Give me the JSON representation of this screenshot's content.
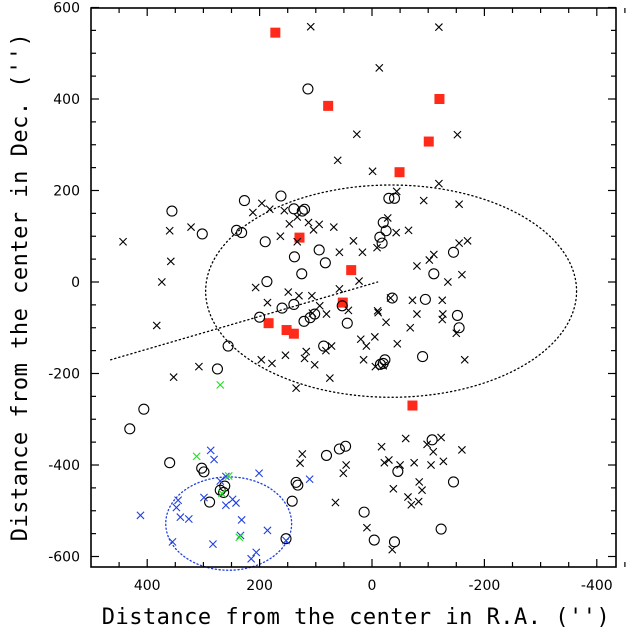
{
  "chart_data": {
    "type": "scatter",
    "xlabel": "Distance from the center in R.A. ('')",
    "ylabel": "Distance from the center in Dec. ('')",
    "xlim": [
      500,
      -500
    ],
    "ylim": [
      -630,
      600
    ],
    "x_ticks": [
      400,
      200,
      0,
      -200,
      -400
    ],
    "x_tick_labels": [
      "400",
      "200",
      "0",
      "-200",
      "-400"
    ],
    "y_ticks": [
      600,
      400,
      200,
      0,
      -200,
      -400,
      -600
    ],
    "y_tick_labels": [
      "600",
      "400",
      "200",
      "0",
      "-200",
      "-400",
      "-600"
    ],
    "grid": false,
    "legend": "none",
    "series": [
      {
        "marker": "filled-square",
        "color": "#ff2a1a",
        "points": [
          [
            172,
            545
          ],
          [
            78,
            385
          ],
          [
            -120,
            400
          ],
          [
            -101,
            307
          ],
          [
            -49,
            240
          ],
          [
            129,
            97
          ],
          [
            37,
            26
          ],
          [
            52,
            -45
          ],
          [
            184,
            -90
          ],
          [
            152,
            -105
          ],
          [
            139,
            -113
          ],
          [
            -72,
            -270
          ]
        ]
      },
      {
        "marker": "open-circle",
        "color": "#000000",
        "points": [
          [
            114,
            422
          ],
          [
            356,
            155
          ],
          [
            302,
            105
          ],
          [
            241,
            113
          ],
          [
            227,
            178
          ],
          [
            232,
            108
          ],
          [
            162,
            188
          ],
          [
            139,
            160
          ],
          [
            124,
            155
          ],
          [
            120,
            159
          ],
          [
            190,
            88
          ],
          [
            138,
            55
          ],
          [
            94,
            70
          ],
          [
            83,
            42
          ],
          [
            125,
            18
          ],
          [
            -18,
            85
          ],
          [
            -14,
            98
          ],
          [
            -30,
            183
          ],
          [
            -40,
            183
          ],
          [
            -20,
            130
          ],
          [
            -25,
            112
          ],
          [
            -36,
            -35
          ],
          [
            -95,
            -38
          ],
          [
            -110,
            18
          ],
          [
            -145,
            65
          ],
          [
            -152,
            -73
          ],
          [
            -155,
            -100
          ],
          [
            275,
            -190
          ],
          [
            256,
            -140
          ],
          [
            187,
            1
          ],
          [
            200,
            -77
          ],
          [
            160,
            -57
          ],
          [
            139,
            -49
          ],
          [
            102,
            -70
          ],
          [
            121,
            -86
          ],
          [
            110,
            -78
          ],
          [
            86,
            -140
          ],
          [
            53,
            -52
          ],
          [
            44,
            -90
          ],
          [
            -23,
            -170
          ],
          [
            -20,
            -178
          ],
          [
            -90,
            -163
          ],
          [
            -107,
            -345
          ],
          [
            406,
            -278
          ],
          [
            431,
            -321
          ],
          [
            360,
            -395
          ],
          [
            303,
            -407
          ],
          [
            299,
            -415
          ],
          [
            289,
            -481
          ],
          [
            264,
            -460
          ],
          [
            270,
            -455
          ],
          [
            262,
            -446
          ],
          [
            132,
            -444
          ],
          [
            135,
            -438
          ],
          [
            142,
            -479
          ],
          [
            81,
            -379
          ],
          [
            58,
            -365
          ],
          [
            47,
            -359
          ],
          [
            14,
            -503
          ],
          [
            -4,
            -564
          ],
          [
            -46,
            -414
          ],
          [
            -40,
            -568
          ],
          [
            -123,
            -540
          ],
          [
            -145,
            -437
          ],
          [
            153,
            -561
          ],
          [
            -15,
            -180
          ]
        ]
      },
      {
        "marker": "x",
        "color": "#000000",
        "points": [
          [
            109,
            558
          ],
          [
            -13,
            468
          ],
          [
            -119,
            557
          ],
          [
            27,
            323
          ],
          [
            -152,
            322
          ],
          [
            61,
            266
          ],
          [
            -1,
            242
          ],
          [
            -119,
            215
          ],
          [
            -44,
            198
          ],
          [
            -92,
            178
          ],
          [
            -155,
            85
          ],
          [
            -155,
            170
          ],
          [
            443,
            88
          ],
          [
            360,
            112
          ],
          [
            322,
            120
          ],
          [
            358,
            45
          ],
          [
            374,
            0
          ],
          [
            383,
            -95
          ],
          [
            353,
            -208
          ],
          [
            308,
            -185
          ],
          [
            212,
            152
          ],
          [
            196,
            172
          ],
          [
            182,
            159
          ],
          [
            156,
            156
          ],
          [
            133,
            142
          ],
          [
            113,
            130
          ],
          [
            147,
            127
          ],
          [
            163,
            100
          ],
          [
            133,
            88
          ],
          [
            104,
            114
          ],
          [
            94,
            126
          ],
          [
            68,
            120
          ],
          [
            58,
            65
          ],
          [
            33,
            90
          ],
          [
            17,
            65
          ],
          [
            -9,
            75
          ],
          [
            -28,
            140
          ],
          [
            -43,
            108
          ],
          [
            -65,
            113
          ],
          [
            -80,
            35
          ],
          [
            -110,
            60
          ],
          [
            -102,
            48
          ],
          [
            -170,
            90
          ],
          [
            -160,
            16
          ],
          [
            -135,
            0
          ],
          [
            -125,
            -40
          ],
          [
            -126,
            -70
          ],
          [
            -150,
            -112
          ],
          [
            -165,
            -170
          ],
          [
            -33,
            -35
          ],
          [
            -72,
            -40
          ],
          [
            -80,
            -70
          ],
          [
            -25,
            -88
          ],
          [
            -11,
            -67
          ],
          [
            -5,
            -120
          ],
          [
            20,
            -125
          ],
          [
            10,
            -140
          ],
          [
            -6,
            -185
          ],
          [
            15,
            -170
          ],
          [
            -20,
            -183
          ],
          [
            207,
            -12
          ],
          [
            186,
            -45
          ],
          [
            149,
            -22
          ],
          [
            107,
            -30
          ],
          [
            93,
            -52
          ],
          [
            58,
            -15
          ],
          [
            23,
            2
          ],
          [
            42,
            -62
          ],
          [
            81,
            -70
          ],
          [
            106,
            -68
          ],
          [
            130,
            -30
          ],
          [
            197,
            -170
          ],
          [
            154,
            -160
          ],
          [
            117,
            -152
          ],
          [
            82,
            -150
          ],
          [
            72,
            -140
          ],
          [
            -10,
            -63
          ],
          [
            -45,
            -135
          ],
          [
            -68,
            -100
          ],
          [
            -125,
            -82
          ],
          [
            178,
            -178
          ],
          [
            75,
            -210
          ],
          [
            135,
            -232
          ],
          [
            120,
            -167
          ],
          [
            102,
            -181
          ],
          [
            124,
            -376
          ],
          [
            51,
            -418
          ],
          [
            46,
            -400
          ],
          [
            -38,
            -452
          ],
          [
            -22,
            -395
          ],
          [
            -84,
            -437
          ],
          [
            -98,
            -355
          ],
          [
            -123,
            -340
          ],
          [
            -105,
            -400
          ],
          [
            65,
            -482
          ],
          [
            -36,
            -585
          ],
          [
            9,
            -537
          ],
          [
            -89,
            -455
          ],
          [
            -109,
            -371
          ],
          [
            -30,
            -389
          ],
          [
            -64,
            -470
          ],
          [
            -70,
            -487
          ],
          [
            -17,
            -360
          ],
          [
            128,
            -396
          ],
          [
            -75,
            -395
          ],
          [
            -50,
            -400
          ],
          [
            -60,
            -342
          ],
          [
            -83,
            -480
          ],
          [
            -127,
            -392
          ],
          [
            -160,
            -367
          ]
        ]
      },
      {
        "marker": "x",
        "color": "#2040e0",
        "points": [
          [
            412,
            -510
          ],
          [
            355,
            -568
          ],
          [
            348,
            -493
          ],
          [
            345,
            -477
          ],
          [
            341,
            -514
          ],
          [
            326,
            -518
          ],
          [
            287,
            -368
          ],
          [
            281,
            -388
          ],
          [
            299,
            -471
          ],
          [
            260,
            -425
          ],
          [
            270,
            -435
          ],
          [
            260,
            -488
          ],
          [
            248,
            -475
          ],
          [
            242,
            -483
          ],
          [
            232,
            -520
          ],
          [
            206,
            -591
          ],
          [
            215,
            -605
          ],
          [
            201,
            -418
          ],
          [
            186,
            -543
          ],
          [
            283,
            -573
          ],
          [
            234,
            -554
          ],
          [
            111,
            -431
          ],
          [
            153,
            -565
          ]
        ]
      },
      {
        "marker": "x",
        "color": "#22dd22",
        "points": [
          [
            270,
            -225
          ],
          [
            312,
            -381
          ],
          [
            255,
            -424
          ],
          [
            236,
            -558
          ],
          [
            267,
            -462
          ]
        ]
      }
    ],
    "annotations": [
      {
        "shape": "dotted-ellipse",
        "color": "#000000",
        "center": [
          -34,
          -20
        ],
        "semi_axes": [
          330,
          232
        ]
      },
      {
        "shape": "dotted-line",
        "color": "#000000",
        "from": [
          465,
          -170
        ],
        "to": [
          -10,
          0
        ]
      },
      {
        "shape": "dotted-circle",
        "color": "#2040e0",
        "center": [
          255,
          -528
        ],
        "semi_axes": [
          112,
          102
        ]
      }
    ]
  }
}
